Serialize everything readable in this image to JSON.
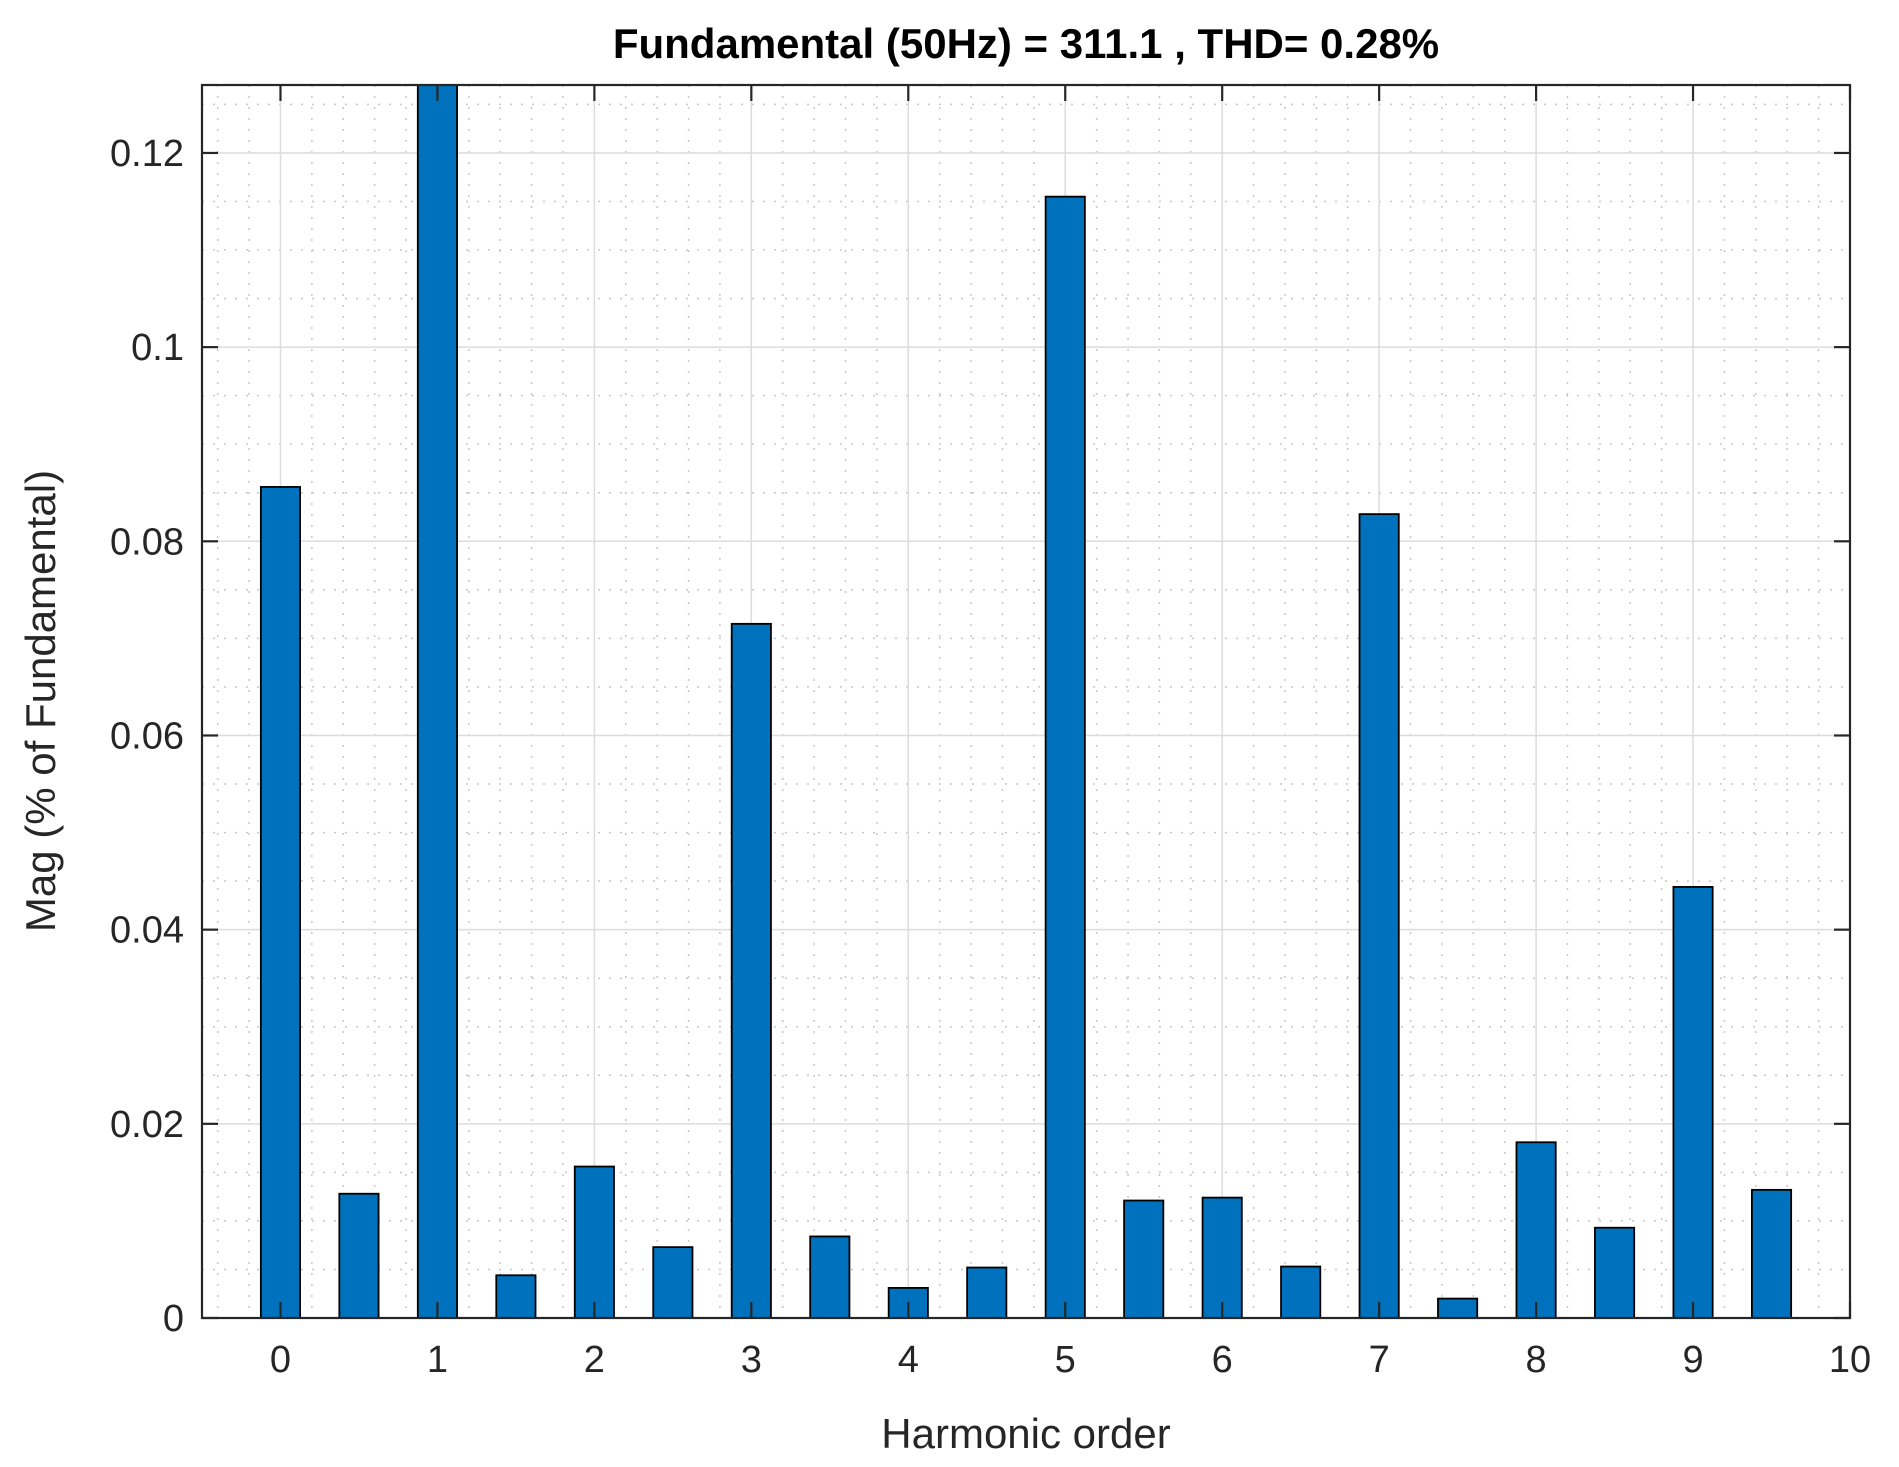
{
  "chart_data": {
    "type": "bar",
    "title": "Fundamental (50Hz) = 311.1 , THD= 0.28%",
    "xlabel": "Harmonic order",
    "ylabel": "Mag (% of Fundamental)",
    "x": [
      0,
      0.5,
      1,
      1.5,
      2,
      2.5,
      3,
      3.5,
      4,
      4.5,
      5,
      5.5,
      6,
      6.5,
      7,
      7.5,
      8,
      8.5,
      9,
      9.5
    ],
    "values": [
      0.0856,
      0.0128,
      0.127,
      0.0044,
      0.0156,
      0.0073,
      0.0715,
      0.0084,
      0.0031,
      0.0052,
      0.1155,
      0.0121,
      0.0124,
      0.0053,
      0.0828,
      0.002,
      0.0181,
      0.0093,
      0.0444,
      0.0132
    ],
    "xlim": [
      -0.5,
      10
    ],
    "ylim": [
      0,
      0.127
    ],
    "xticks": [
      "0",
      "1",
      "2",
      "3",
      "4",
      "5",
      "6",
      "7",
      "8",
      "9",
      "10"
    ],
    "yticks": [
      "0",
      "0.02",
      "0.04",
      "0.06",
      "0.08",
      "0.1",
      "0.12"
    ],
    "grid": true,
    "minor_grid": true,
    "bar_color": "#0072BD"
  }
}
